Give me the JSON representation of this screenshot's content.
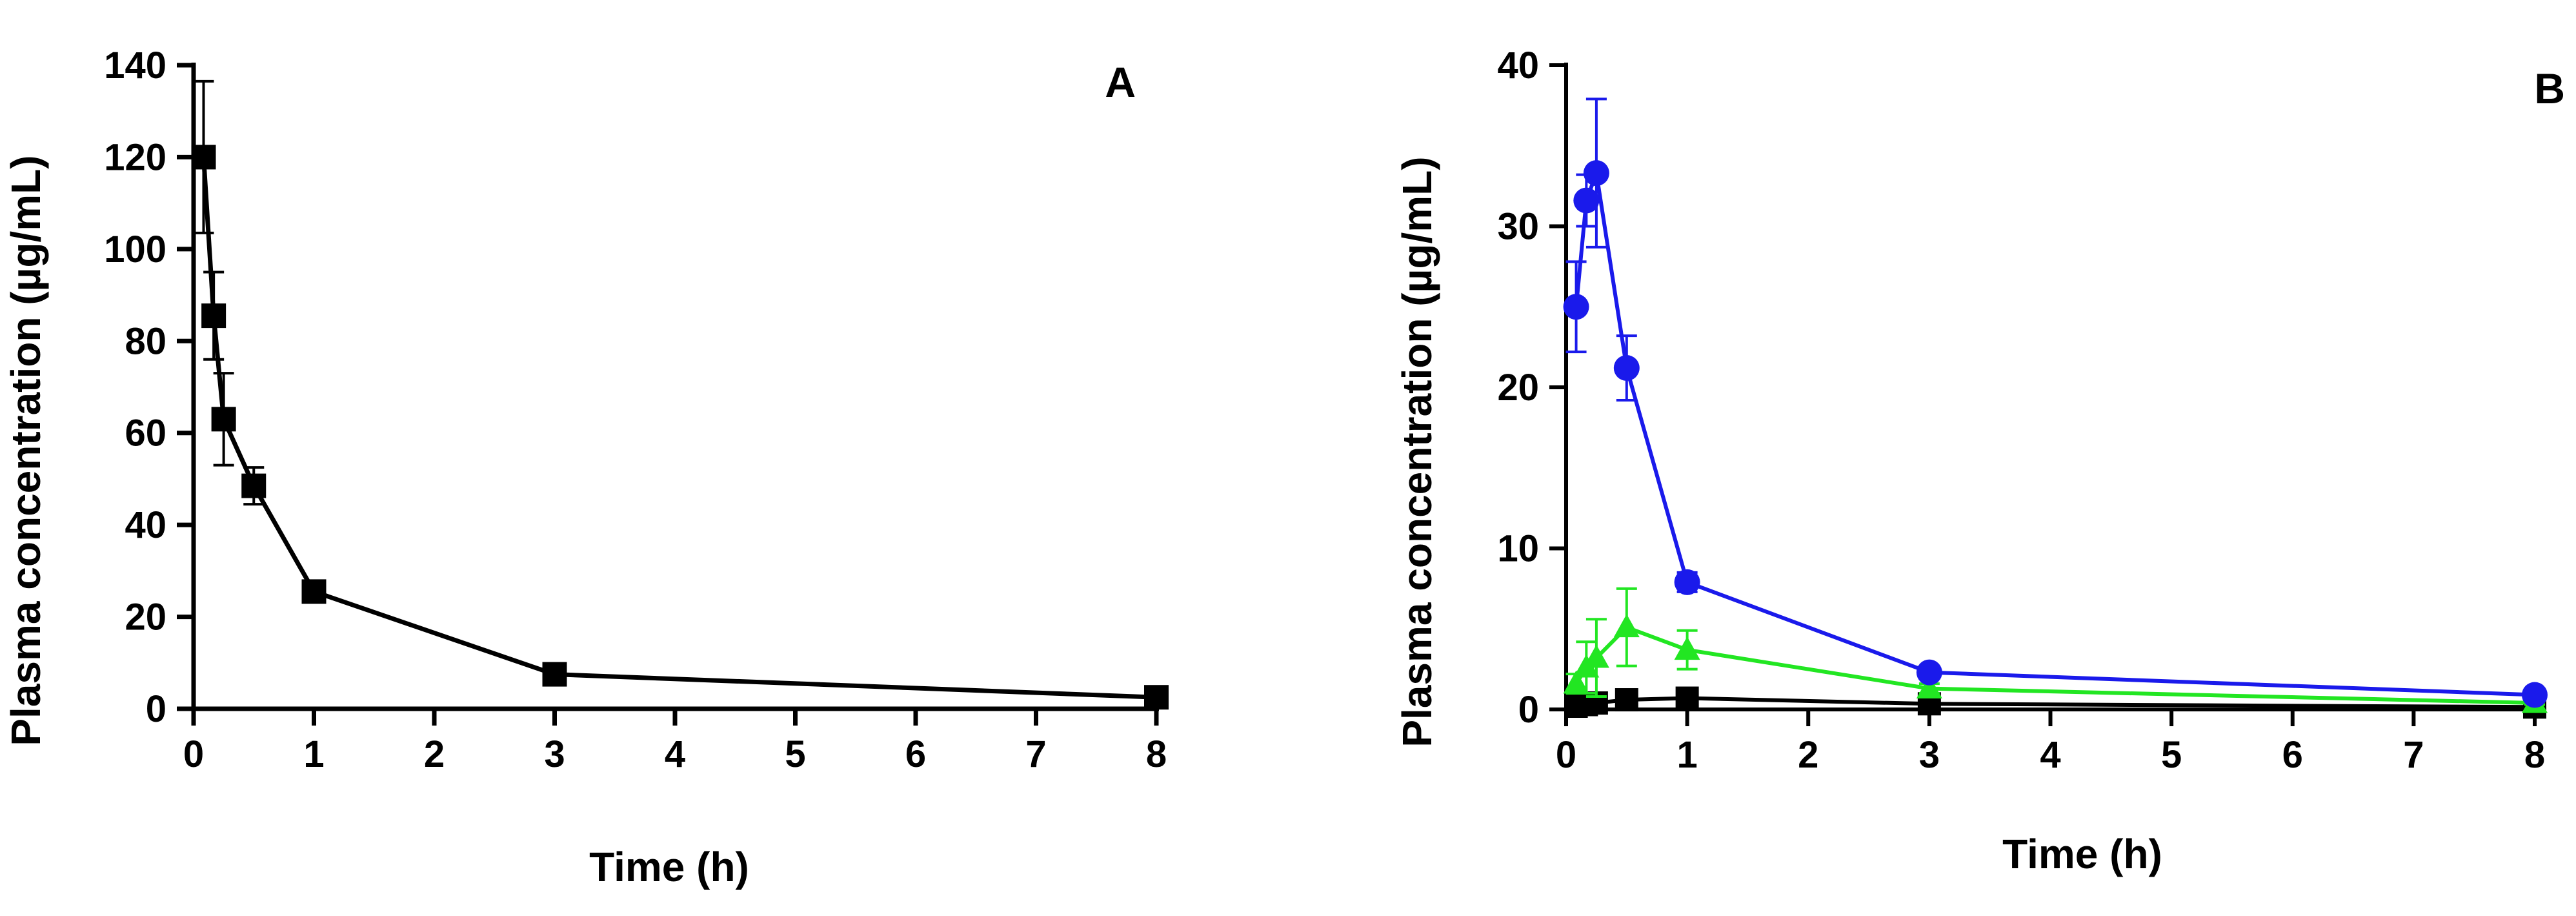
{
  "chart_data": [
    {
      "type": "line",
      "panel_label": "A",
      "xlabel": "Time (h)",
      "ylabel": "Plasma concentration (µg/mL)",
      "x_ticks": [
        0,
        1,
        2,
        3,
        4,
        5,
        6,
        7,
        8
      ],
      "y_ticks": [
        0,
        20,
        40,
        60,
        80,
        100,
        120,
        140
      ],
      "ylim": [
        0,
        140
      ],
      "series": [
        {
          "name": "series-1",
          "color": "#000000",
          "marker": "square",
          "x": [
            0.083,
            0.167,
            0.25,
            0.5,
            1,
            3,
            8
          ],
          "y": [
            120,
            85.5,
            63,
            48.5,
            25.5,
            7.5,
            2.5
          ],
          "err": [
            16.5,
            9.5,
            10,
            4,
            1,
            0.5,
            0.3
          ]
        }
      ]
    },
    {
      "type": "line",
      "panel_label": "B",
      "xlabel": "Time (h)",
      "ylabel": "Plasma concentration (µg/mL)",
      "x_ticks": [
        0,
        1,
        2,
        3,
        4,
        5,
        6,
        7,
        8
      ],
      "y_ticks": [
        0,
        10,
        20,
        30,
        40
      ],
      "ylim": [
        0,
        40
      ],
      "series": [
        {
          "name": "series-blue",
          "color": "#1a1aeb",
          "marker": "circle",
          "x": [
            0.083,
            0.167,
            0.25,
            0.5,
            1,
            3,
            8
          ],
          "y": [
            25,
            31.6,
            33.3,
            21.2,
            7.9,
            2.3,
            0.9
          ],
          "err": [
            2.8,
            1.6,
            4.6,
            2,
            0.6,
            0.3,
            0.2
          ]
        },
        {
          "name": "series-green",
          "color": "#22e622",
          "marker": "triangle",
          "x": [
            0.083,
            0.167,
            0.25,
            0.5,
            1,
            3,
            8
          ],
          "y": [
            1.6,
            2.6,
            3.2,
            5.1,
            3.7,
            1.3,
            0.4
          ],
          "err": [
            0.6,
            1.6,
            2.4,
            2.4,
            1.2,
            0.3,
            0.1
          ]
        },
        {
          "name": "series-black",
          "color": "#000000",
          "marker": "square",
          "x": [
            0.083,
            0.167,
            0.25,
            0.5,
            1,
            3,
            8
          ],
          "y": [
            0.2,
            0.3,
            0.4,
            0.6,
            0.7,
            0.35,
            0.15
          ],
          "err": [
            0.05,
            0.05,
            0.05,
            0.1,
            0.1,
            0.05,
            0.03
          ]
        }
      ]
    }
  ]
}
